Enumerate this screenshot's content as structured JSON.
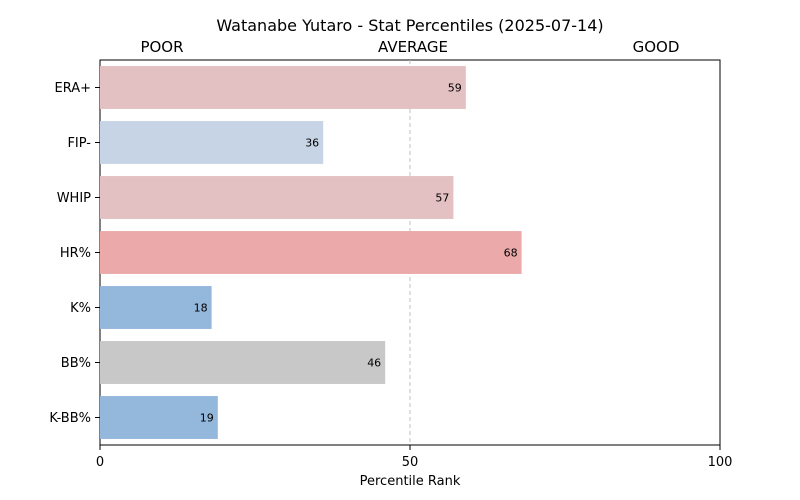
{
  "chart_data": {
    "type": "bar",
    "orientation": "horizontal",
    "title": "Watanabe Yutaro - Stat Percentiles (2025-07-14)",
    "xlabel": "Percentile Rank",
    "ylabel": "",
    "xlim": [
      0,
      100
    ],
    "xticks": [
      0,
      50,
      100
    ],
    "reference_line": 50,
    "zone_labels": [
      "POOR",
      "AVERAGE",
      "GOOD"
    ],
    "grid": false,
    "categories": [
      "ERA+",
      "FIP-",
      "WHIP",
      "HR%",
      "K%",
      "BB%",
      "K-BB%"
    ],
    "values": [
      59,
      36,
      57,
      68,
      18,
      46,
      19
    ],
    "colors": [
      "#e3c0c1",
      "#c6d4e5",
      "#e3c0c1",
      "#eca9aa",
      "#94b7dc",
      "#c8c8c8",
      "#94b7dc"
    ]
  }
}
